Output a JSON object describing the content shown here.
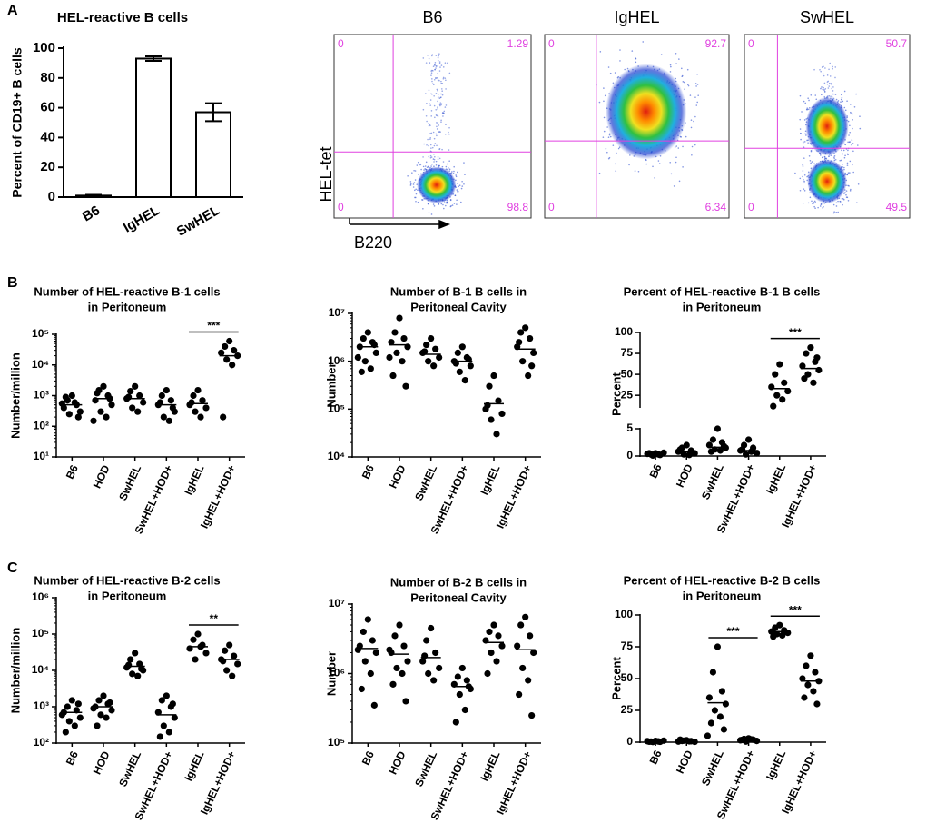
{
  "panel_labels": [
    "A",
    "B",
    "C"
  ],
  "chart_data": [
    {
      "type": "bar",
      "title": "HEL-reactive B cells",
      "ylabel": "Percent of CD19+ B cells",
      "categories": [
        "B6",
        "IgHEL",
        "SwHEL"
      ],
      "values": [
        1,
        93,
        57
      ],
      "errors": [
        0.5,
        1.5,
        6
      ],
      "ylim": [
        0,
        100
      ],
      "yticks": [
        0,
        20,
        40,
        60,
        80,
        100
      ],
      "color": "#ffffff"
    },
    {
      "type": "flow",
      "title": "B6",
      "ylabel": "HEL-tet",
      "xlabel": "B220",
      "quadrants": {
        "upper_left": 0,
        "upper_right": 1.29,
        "lower_left": 0,
        "lower_right": 98.8
      },
      "color": "#e040e0"
    },
    {
      "type": "flow",
      "title": "IgHEL",
      "quadrants": {
        "upper_left": 0,
        "upper_right": 92.7,
        "lower_left": 0,
        "lower_right": 6.34
      },
      "color": "#e040e0"
    },
    {
      "type": "flow",
      "title": "SwHEL",
      "quadrants": {
        "upper_left": 0,
        "upper_right": 50.7,
        "lower_left": 0,
        "lower_right": 49.5
      },
      "color": "#e040e0"
    },
    {
      "type": "dot",
      "title": [
        "Number of HEL-reactive B-1 cells",
        "in Peritoneum"
      ],
      "ylabel": "Number/million",
      "categories": [
        "B6",
        "HOD",
        "SwHEL",
        "SwHEL+HOD+",
        "IgHEL",
        "IgHEL+HOD+"
      ],
      "points": [
        [
          1000,
          700,
          500,
          400,
          300,
          250,
          600,
          900,
          200,
          550
        ],
        [
          2000,
          1500,
          1000,
          700,
          500,
          300,
          200,
          1200,
          800,
          150
        ],
        [
          2000,
          1400,
          1000,
          800,
          600,
          400,
          300,
          900
        ],
        [
          1500,
          1000,
          700,
          500,
          300,
          200,
          150,
          600,
          400
        ],
        [
          1500,
          1000,
          700,
          500,
          400,
          300,
          200,
          600
        ],
        [
          60000,
          40000,
          30000,
          25000,
          20000,
          15000,
          10000,
          200
        ]
      ],
      "means": [
        500,
        800,
        800,
        500,
        550,
        20000
      ],
      "yscale": "log",
      "ylim": [
        10,
        100000
      ],
      "yticks": [
        {
          "value": 10,
          "label": "10¹"
        },
        {
          "value": 100,
          "label": "10²"
        },
        {
          "value": 1000,
          "label": "10³"
        },
        {
          "value": 10000,
          "label": "10⁴"
        },
        {
          "value": 100000,
          "label": "10⁵"
        }
      ],
      "annotations": [
        {
          "label": "***",
          "between": [
            "IgHEL",
            "IgHEL+HOD+"
          ]
        }
      ]
    },
    {
      "type": "dot",
      "title": [
        "Number of B-1 B cells in",
        "Peritoneal Cavity"
      ],
      "ylabel": "Number",
      "categories": [
        "B6",
        "HOD",
        "SwHEL",
        "SwHEL+HOD+",
        "IgHEL",
        "IgHEL+HOD+"
      ],
      "points": [
        [
          4000000,
          3000000,
          2500000,
          2000000,
          1500000,
          1000000,
          700000,
          600000,
          2200000,
          1200000
        ],
        [
          8000000,
          4000000,
          3000000,
          2500000,
          2000000,
          1500000,
          1000000,
          500000,
          300000,
          1200000
        ],
        [
          3000000,
          2200000,
          1800000,
          1500000,
          1200000,
          1000000,
          800000,
          1600000
        ],
        [
          2000000,
          1500000,
          1200000,
          1000000,
          800000,
          600000,
          400000,
          900000,
          1100000
        ],
        [
          500000,
          300000,
          150000,
          100000,
          80000,
          60000,
          30000,
          120000
        ],
        [
          5000000,
          4000000,
          3000000,
          2000000,
          1500000,
          1000000,
          500000,
          2500000,
          800000
        ]
      ],
      "means": [
        2000000,
        2200000,
        1400000,
        1000000,
        130000,
        1800000
      ],
      "yscale": "log",
      "ylim": [
        10000,
        10000000
      ],
      "yticks": [
        {
          "value": 10000,
          "label": "10⁴"
        },
        {
          "value": 100000,
          "label": "10⁵"
        },
        {
          "value": 1000000,
          "label": "10⁶"
        },
        {
          "value": 10000000,
          "label": "10⁷"
        }
      ],
      "annotations": []
    },
    {
      "type": "dot",
      "title": [
        "Percent of HEL-reactive B-1 B cells",
        "in Peritoneum"
      ],
      "ylabel": "Percent",
      "categories": [
        "B6",
        "HOD",
        "SwHEL",
        "SwHEL+HOD+",
        "IgHEL",
        "IgHEL+HOD+"
      ],
      "points": [
        [
          0.5,
          0.3,
          0.2,
          0.4,
          0.6,
          0.1,
          0.3,
          0.5
        ],
        [
          2,
          1.5,
          1,
          0.8,
          0.5,
          0.3,
          0.2,
          1.2,
          0.6
        ],
        [
          5,
          3,
          2.5,
          2,
          1.5,
          1.2,
          1,
          0.8,
          1.8
        ],
        [
          3,
          2,
          1.5,
          1,
          0.5,
          0.3,
          0.8,
          1.2
        ],
        [
          62,
          50,
          40,
          35,
          30,
          25,
          20,
          12
        ],
        [
          82,
          75,
          65,
          60,
          55,
          50,
          40,
          45,
          70
        ]
      ],
      "means": [
        0.4,
        0.8,
        1.6,
        1,
        33,
        57
      ],
      "yscale": "broken",
      "segments": [
        {
          "ylim": [
            0,
            5
          ],
          "yticks": [
            0,
            5
          ]
        },
        {
          "ylim": [
            10,
            100
          ],
          "yticks": [
            25,
            50,
            75,
            100
          ]
        }
      ],
      "annotations": [
        {
          "label": "***",
          "between": [
            "IgHEL",
            "IgHEL+HOD+"
          ]
        }
      ]
    },
    {
      "type": "dot",
      "title": [
        "Number of HEL-reactive B-2 cells",
        "in Peritoneum"
      ],
      "ylabel": "Number/million",
      "categories": [
        "B6",
        "HOD",
        "SwHEL",
        "SwHEL+HOD+",
        "IgHEL",
        "IgHEL+HOD+"
      ],
      "points": [
        [
          1500,
          1000,
          800,
          700,
          500,
          400,
          300,
          200,
          1200,
          600
        ],
        [
          2000,
          1500,
          1200,
          1000,
          800,
          600,
          500,
          300,
          1300,
          900
        ],
        [
          30000,
          20000,
          15000,
          12000,
          10000,
          8000,
          7000,
          14000,
          11000
        ],
        [
          2000,
          1500,
          1000,
          700,
          500,
          300,
          200,
          150,
          1200
        ],
        [
          100000,
          70000,
          50000,
          40000,
          30000,
          20000,
          45000
        ],
        [
          50000,
          35000,
          25000,
          20000,
          15000,
          10000,
          7000,
          18000
        ]
      ],
      "means": [
        700,
        1000,
        13000,
        600,
        45000,
        20000
      ],
      "yscale": "log",
      "ylim": [
        100,
        1000000
      ],
      "yticks": [
        {
          "value": 100,
          "label": "10²"
        },
        {
          "value": 1000,
          "label": "10³"
        },
        {
          "value": 10000,
          "label": "10⁴"
        },
        {
          "value": 100000,
          "label": "10⁵"
        },
        {
          "value": 1000000,
          "label": "10⁶"
        }
      ],
      "annotations": [
        {
          "label": "**",
          "between": [
            "IgHEL",
            "IgHEL+HOD+"
          ]
        }
      ]
    },
    {
      "type": "dot",
      "title": [
        "Number of B-2 B cells in",
        "Peritoneal Cavity"
      ],
      "ylabel": "Number",
      "categories": [
        "B6",
        "HOD",
        "SwHEL",
        "SwHEL+HOD+",
        "IgHEL",
        "IgHEL+HOD+"
      ],
      "points": [
        [
          6000000,
          4000000,
          3000000,
          2500000,
          2000000,
          1500000,
          1000000,
          600000,
          350000,
          2200000
        ],
        [
          5000000,
          3500000,
          2500000,
          2000000,
          1500000,
          1200000,
          1000000,
          700000,
          400000,
          2200000
        ],
        [
          4500000,
          3000000,
          2000000,
          1500000,
          1200000,
          1000000,
          800000,
          1800000
        ],
        [
          1200000,
          900000,
          800000,
          700000,
          600000,
          500000,
          300000,
          200000,
          650000
        ],
        [
          5000000,
          4000000,
          3500000,
          3000000,
          2500000,
          2000000,
          1500000,
          1000000
        ],
        [
          6500000,
          5000000,
          3500000,
          2500000,
          2000000,
          1200000,
          800000,
          500000,
          250000
        ]
      ],
      "means": [
        2300000,
        1900000,
        1700000,
        650000,
        2800000,
        2200000
      ],
      "yscale": "log",
      "ylim": [
        100000,
        10000000
      ],
      "yticks": [
        {
          "value": 100000,
          "label": "10⁵"
        },
        {
          "value": 1000000,
          "label": "10⁶"
        },
        {
          "value": 10000000,
          "label": "10⁷"
        }
      ],
      "annotations": []
    },
    {
      "type": "dot",
      "title": [
        "Percent of HEL-reactive B-2 B cells",
        "in Peritoneum"
      ],
      "ylabel": "Percent",
      "categories": [
        "B6",
        "HOD",
        "SwHEL",
        "SwHEL+HOD+",
        "IgHEL",
        "IgHEL+HOD+"
      ],
      "points": [
        [
          1,
          0.5,
          0.3,
          0.8,
          1.2,
          0.2,
          0.6,
          0.4
        ],
        [
          1.5,
          1,
          0.8,
          0.5,
          0.3,
          1.2,
          0.7,
          2
        ],
        [
          75,
          55,
          40,
          35,
          30,
          25,
          20,
          15,
          10,
          5
        ],
        [
          3,
          2.5,
          2,
          1.5,
          1,
          0.5,
          2.2,
          1.8
        ],
        [
          92,
          90,
          88,
          87,
          86,
          85,
          84,
          83
        ],
        [
          68,
          60,
          55,
          50,
          48,
          45,
          40,
          35,
          30
        ]
      ],
      "means": [
        0.6,
        0.9,
        31,
        1.8,
        87,
        48
      ],
      "yscale": "linear",
      "ylim": [
        0,
        100
      ],
      "yticks": [
        0,
        25,
        50,
        75,
        100
      ],
      "annotations": [
        {
          "label": "***",
          "between": [
            "SwHEL",
            "SwHEL+HOD+"
          ]
        },
        {
          "label": "***",
          "between": [
            "IgHEL",
            "IgHEL+HOD+"
          ]
        }
      ]
    }
  ]
}
